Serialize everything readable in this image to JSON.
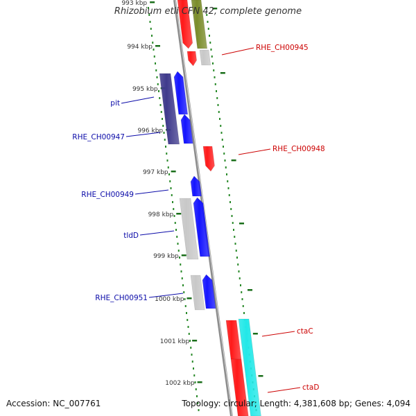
{
  "title": "Rhizobium etli CFN 42, complete genome",
  "footer": {
    "accession": "Accession: NC_007761",
    "topology": "Topology: circular; Length: 4,381,608 bp; Genes: 4,094"
  },
  "colors": {
    "backbone": "#8c8c8c",
    "tick": "#2a8a2a",
    "forward_gene": "#1414ff",
    "forward_dark": "#3f3a8c",
    "reverse_gene": "#ff1a1a",
    "olive_gene": "#7a8c2a",
    "cyan_gene": "#22e8e8",
    "grey_gene": "#c8c8c8",
    "label_blue": "#0a0aa8",
    "label_red": "#cc0000"
  },
  "scale": {
    "unit": "kbp",
    "ticks": [
      "993 kbp",
      "994 kbp",
      "995 kbp",
      "996 kbp",
      "997 kbp",
      "998 kbp",
      "999 kbp",
      "1000 kbp",
      "1001 kbp",
      "1002 kbp"
    ]
  },
  "labels": [
    {
      "text": "RHE_CH00945",
      "side": "right"
    },
    {
      "text": "pit",
      "side": "left"
    },
    {
      "text": "RHE_CH00947",
      "side": "left"
    },
    {
      "text": "RHE_CH00948",
      "side": "right"
    },
    {
      "text": "RHE_CH00949",
      "side": "left"
    },
    {
      "text": "tldD",
      "side": "left"
    },
    {
      "text": "RHE_CH00951",
      "side": "left"
    },
    {
      "text": "ctaC",
      "side": "right"
    },
    {
      "text": "ctaD",
      "side": "right"
    }
  ]
}
